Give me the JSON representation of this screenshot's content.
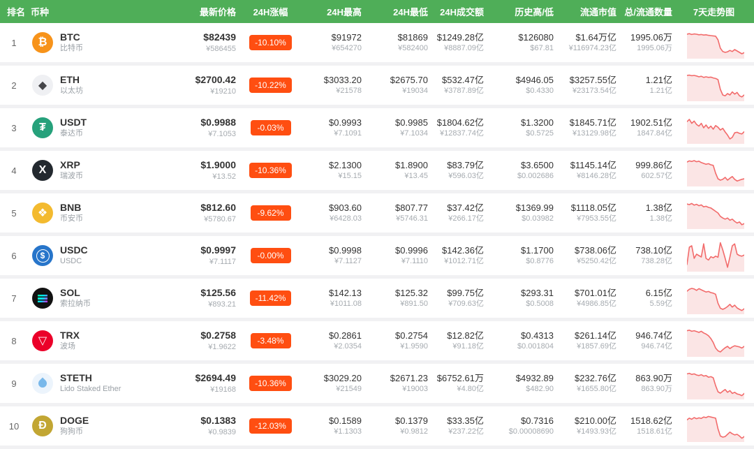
{
  "colors": {
    "header_bg": "#4fae58",
    "badge_bg": "#ff4e11",
    "spark_line": "#f26b6b",
    "spark_fill": "#fbe5e5"
  },
  "table": {
    "columns": [
      {
        "label": "排名"
      },
      {
        "label": "币种"
      },
      {
        "label": "最新价格"
      },
      {
        "label": "24H涨幅"
      },
      {
        "label": "24H最高"
      },
      {
        "label": "24H最低"
      },
      {
        "label": "24H成交额"
      },
      {
        "label": "历史高/低"
      },
      {
        "label": "流通市值"
      },
      {
        "label": "总/流通数量"
      },
      {
        "label": "7天走势图"
      }
    ],
    "rows": [
      {
        "rank": "1",
        "symbol": "BTC",
        "name": "比特币",
        "icon": {
          "glyph": "₿",
          "bg": "#F7931A",
          "color": "#ffffff",
          "shape": "glyph",
          "semantic": "bitcoin-icon"
        },
        "price_usd": "$82439",
        "price_cny": "¥586455",
        "change": "-10.10%",
        "high_usd": "$91972",
        "high_cny": "¥654270",
        "low_usd": "$81869",
        "low_cny": "¥582400",
        "volume_usd": "$1249.28亿",
        "volume_cny": "¥8887.09亿",
        "ath": "$126080",
        "atl": "$67.81",
        "mcap_usd": "$1.64万亿",
        "mcap_cny": "¥116974.23亿",
        "supply_total": "1995.06万",
        "supply_circ": "1995.06万",
        "spark": [
          80,
          82,
          79,
          81,
          80,
          78,
          79,
          77,
          78,
          76,
          75,
          74,
          73,
          60,
          30,
          18,
          15,
          17,
          22,
          18,
          25,
          20,
          15,
          10,
          14
        ]
      },
      {
        "rank": "2",
        "symbol": "ETH",
        "name": "以太坊",
        "icon": {
          "glyph": "◆",
          "bg": "#eff0f3",
          "color": "#454549",
          "shape": "glyph",
          "semantic": "ethereum-icon"
        },
        "price_usd": "$2700.42",
        "price_cny": "¥19210",
        "change": "-10.22%",
        "high_usd": "$3033.20",
        "high_cny": "¥21578",
        "low_usd": "$2675.70",
        "low_cny": "¥19034",
        "volume_usd": "$532.47亿",
        "volume_cny": "¥3787.89亿",
        "ath": "$4946.05",
        "atl": "$0.4330",
        "mcap_usd": "$3257.55亿",
        "mcap_cny": "¥23173.54亿",
        "supply_total": "1.21亿",
        "supply_circ": "1.21亿",
        "spark": [
          85,
          86,
          84,
          85,
          83,
          80,
          82,
          78,
          80,
          78,
          79,
          76,
          74,
          70,
          35,
          15,
          12,
          20,
          15,
          26,
          18,
          24,
          12,
          8,
          15
        ]
      },
      {
        "rank": "3",
        "symbol": "USDT",
        "name": "泰达币",
        "icon": {
          "glyph": "₮",
          "bg": "#26A17B",
          "color": "#ffffff",
          "shape": "glyph",
          "semantic": "tether-icon"
        },
        "price_usd": "$0.9988",
        "price_cny": "¥7.1053",
        "change": "-0.03%",
        "high_usd": "$0.9993",
        "high_cny": "¥7.1091",
        "low_usd": "$0.9985",
        "low_cny": "¥7.1034",
        "volume_usd": "$1804.62亿",
        "volume_cny": "¥12837.74亿",
        "ath": "$1.3200",
        "atl": "$0.5725",
        "mcap_usd": "$1845.71亿",
        "mcap_cny": "¥13129.98亿",
        "supply_total": "1902.51亿",
        "supply_circ": "1847.84亿",
        "spark": [
          72,
          80,
          66,
          74,
          62,
          56,
          66,
          50,
          60,
          48,
          56,
          45,
          58,
          52,
          42,
          48,
          35,
          24,
          10,
          16,
          32,
          34,
          30,
          28,
          36
        ]
      },
      {
        "rank": "4",
        "symbol": "XRP",
        "name": "瑞波币",
        "icon": {
          "glyph": "X",
          "bg": "#23292F",
          "color": "#ffffff",
          "shape": "glyph",
          "semantic": "xrp-icon"
        },
        "price_usd": "$1.9000",
        "price_cny": "¥13.52",
        "change": "-10.36%",
        "high_usd": "$2.1300",
        "high_cny": "¥15.15",
        "low_usd": "$1.8900",
        "low_cny": "¥13.45",
        "volume_usd": "$83.79亿",
        "volume_cny": "¥596.03亿",
        "ath": "$3.6500",
        "atl": "$0.002686",
        "mcap_usd": "$1145.14亿",
        "mcap_cny": "¥8146.28亿",
        "supply_total": "999.86亿",
        "supply_circ": "602.57亿",
        "spark": [
          80,
          84,
          82,
          85,
          81,
          83,
          78,
          75,
          72,
          74,
          70,
          68,
          40,
          20,
          15,
          18,
          25,
          15,
          22,
          28,
          18,
          12,
          15,
          18,
          20
        ]
      },
      {
        "rank": "5",
        "symbol": "BNB",
        "name": "币安币",
        "icon": {
          "glyph": "❖",
          "bg": "#F3BA2F",
          "color": "#ffffff",
          "shape": "glyph",
          "semantic": "bnb-icon"
        },
        "price_usd": "$812.60",
        "price_cny": "¥5780.67",
        "change": "-9.62%",
        "high_usd": "$903.60",
        "high_cny": "¥6428.03",
        "low_usd": "$807.77",
        "low_cny": "¥5746.31",
        "volume_usd": "$37.42亿",
        "volume_cny": "¥266.17亿",
        "ath": "$1369.99",
        "atl": "$0.03982",
        "mcap_usd": "$1118.05亿",
        "mcap_cny": "¥7953.55亿",
        "supply_total": "1.38亿",
        "supply_circ": "1.38亿",
        "spark": [
          82,
          80,
          84,
          78,
          81,
          76,
          79,
          72,
          74,
          70,
          68,
          62,
          56,
          50,
          38,
          32,
          28,
          32,
          24,
          28,
          20,
          14,
          18,
          8,
          12
        ]
      },
      {
        "rank": "6",
        "symbol": "USDC",
        "name": "USDC",
        "icon": {
          "glyph": "$",
          "bg": "#2775CA",
          "color": "#ffffff",
          "shape": "ring",
          "semantic": "usdc-icon"
        },
        "price_usd": "$0.9997",
        "price_cny": "¥7.1117",
        "change": "-0.00%",
        "high_usd": "$0.9998",
        "high_cny": "¥7.1127",
        "low_usd": "$0.9996",
        "low_cny": "¥7.1110",
        "volume_usd": "$142.36亿",
        "volume_cny": "¥1012.71亿",
        "ath": "$1.1700",
        "atl": "$0.8776",
        "mcap_usd": "$738.06亿",
        "mcap_cny": "¥5250.42亿",
        "supply_total": "738.10亿",
        "supply_circ": "738.28亿",
        "spark": [
          18,
          80,
          85,
          40,
          55,
          50,
          45,
          92,
          40,
          34,
          46,
          42,
          48,
          44,
          96,
          70,
          40,
          8,
          45,
          85,
          92,
          55,
          50,
          48,
          52
        ]
      },
      {
        "rank": "7",
        "symbol": "SOL",
        "name": "索拉纳币",
        "icon": {
          "glyph": "",
          "bg": "#111111",
          "color": "#00ffa3",
          "shape": "sol-bars",
          "semantic": "solana-icon"
        },
        "price_usd": "$125.56",
        "price_cny": "¥893.21",
        "change": "-11.42%",
        "high_usd": "$142.13",
        "high_cny": "¥1011.08",
        "low_usd": "$125.32",
        "low_cny": "¥891.50",
        "volume_usd": "$99.75亿",
        "volume_cny": "¥709.63亿",
        "ath": "$293.31",
        "atl": "$0.5008",
        "mcap_usd": "$701.01亿",
        "mcap_cny": "¥4986.85亿",
        "supply_total": "6.15亿",
        "supply_circ": "5.59亿",
        "spark": [
          75,
          82,
          85,
          83,
          78,
          84,
          80,
          76,
          72,
          74,
          70,
          68,
          64,
          32,
          14,
          10,
          14,
          20,
          28,
          18,
          25,
          15,
          10,
          6,
          12
        ]
      },
      {
        "rank": "8",
        "symbol": "TRX",
        "name": "波场",
        "icon": {
          "glyph": "▽",
          "bg": "#EB0029",
          "color": "#ffffff",
          "shape": "glyph",
          "semantic": "tron-icon"
        },
        "price_usd": "$0.2758",
        "price_cny": "¥1.9622",
        "change": "-3.48%",
        "high_usd": "$0.2861",
        "high_cny": "¥2.0354",
        "low_usd": "$0.2754",
        "low_cny": "¥1.9590",
        "volume_usd": "$12.82亿",
        "volume_cny": "¥91.18亿",
        "ath": "$0.4313",
        "atl": "$0.001804",
        "mcap_usd": "$261.14亿",
        "mcap_cny": "¥1857.69亿",
        "supply_total": "946.74亿",
        "supply_circ": "946.74亿",
        "spark": [
          86,
          88,
          84,
          86,
          83,
          80,
          84,
          78,
          74,
          68,
          58,
          44,
          24,
          14,
          10,
          18,
          25,
          30,
          22,
          28,
          32,
          30,
          28,
          24,
          30
        ]
      },
      {
        "rank": "9",
        "symbol": "STETH",
        "name": "Lido Staked Ether",
        "icon": {
          "glyph": "",
          "bg": "#ecf4fc",
          "color": "#79b8ea",
          "shape": "droplet",
          "semantic": "steth-icon"
        },
        "price_usd": "$2694.49",
        "price_cny": "¥19168",
        "change": "-10.36%",
        "high_usd": "$3029.20",
        "high_cny": "¥21549",
        "low_usd": "$2671.23",
        "low_cny": "¥19003",
        "volume_usd": "$6752.61万",
        "volume_cny": "¥4.80亿",
        "ath": "$4932.89",
        "atl": "$482.90",
        "mcap_usd": "$232.76亿",
        "mcap_cny": "¥1655.80亿",
        "supply_total": "863.90万",
        "supply_circ": "863.90万",
        "spark": [
          84,
          86,
          82,
          84,
          80,
          78,
          81,
          76,
          78,
          72,
          74,
          70,
          42,
          20,
          15,
          22,
          28,
          18,
          24,
          14,
          18,
          12,
          10,
          6,
          14
        ]
      },
      {
        "rank": "10",
        "symbol": "DOGE",
        "name": "狗狗币",
        "icon": {
          "glyph": "Ð",
          "bg": "#C2A633",
          "color": "#ffffff",
          "shape": "glyph",
          "semantic": "doge-icon"
        },
        "price_usd": "$0.1383",
        "price_cny": "¥0.9839",
        "change": "-12.03%",
        "high_usd": "$0.1589",
        "high_cny": "¥1.1303",
        "low_usd": "$0.1379",
        "low_cny": "¥0.9812",
        "volume_usd": "$33.35亿",
        "volume_cny": "¥237.22亿",
        "ath": "$0.7316",
        "atl": "$0.00008690",
        "mcap_usd": "$210.00亿",
        "mcap_cny": "¥1493.93亿",
        "supply_total": "1518.62亿",
        "supply_circ": "1518.61亿",
        "spark": [
          72,
          78,
          74,
          80,
          76,
          79,
          77,
          82,
          80,
          84,
          82,
          80,
          78,
          40,
          14,
          10,
          12,
          20,
          28,
          22,
          18,
          20,
          14,
          6,
          12
        ]
      }
    ]
  }
}
